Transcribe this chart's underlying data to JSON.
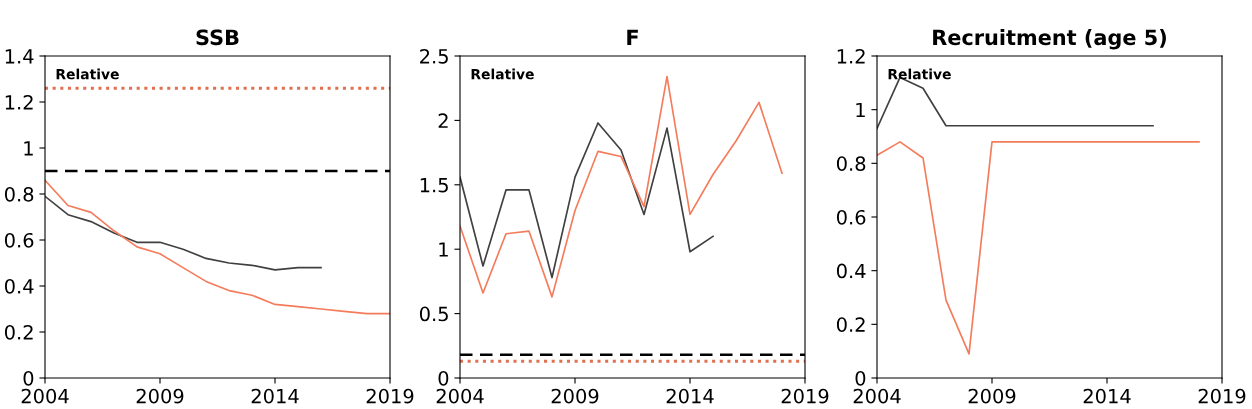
{
  "chart_data": [
    {
      "type": "line",
      "title": "SSB",
      "annotations": [
        "Relative"
      ],
      "xlim": [
        2004,
        2019
      ],
      "xticks": [
        2004,
        2009,
        2014,
        2019
      ],
      "ylim": [
        0,
        1.4
      ],
      "yticks": [
        0,
        0.2,
        0.4,
        0.6,
        0.8,
        1,
        1.2,
        1.4
      ],
      "grid": false,
      "legend": false,
      "series": [
        {
          "color": "#404040",
          "x": [
            2004,
            2005,
            2006,
            2007,
            2008,
            2009,
            2010,
            2011,
            2012,
            2013,
            2014,
            2015,
            2016
          ],
          "values": [
            0.79,
            0.71,
            0.68,
            0.63,
            0.59,
            0.59,
            0.56,
            0.52,
            0.5,
            0.49,
            0.47,
            0.48,
            0.48
          ]
        },
        {
          "color": "#f47c5c",
          "x": [
            2004,
            2005,
            2006,
            2007,
            2008,
            2009,
            2010,
            2011,
            2012,
            2013,
            2014,
            2015,
            2016,
            2017,
            2018,
            2019
          ],
          "values": [
            0.86,
            0.75,
            0.72,
            0.64,
            0.57,
            0.54,
            0.48,
            0.42,
            0.38,
            0.36,
            0.32,
            0.31,
            0.3,
            0.29,
            0.28,
            0.28
          ]
        }
      ],
      "ref_lines": [
        {
          "axis": "y",
          "value": 0.9,
          "color": "#000000",
          "line_style": "dashed"
        },
        {
          "axis": "y",
          "value": 1.26,
          "color": "#e07050",
          "line_style": "dotted"
        }
      ]
    },
    {
      "type": "line",
      "title": "F",
      "annotations": [
        "Relative"
      ],
      "xlim": [
        2004,
        2019
      ],
      "xticks": [
        2004,
        2009,
        2014,
        2019
      ],
      "ylim": [
        0,
        2.5
      ],
      "yticks": [
        0,
        0.5,
        1,
        1.5,
        2,
        2.5
      ],
      "grid": false,
      "legend": false,
      "series": [
        {
          "color": "#404040",
          "x": [
            2004,
            2005,
            2006,
            2007,
            2008,
            2009,
            2010,
            2011,
            2012,
            2013,
            2014,
            2015
          ],
          "values": [
            1.56,
            0.87,
            1.46,
            1.46,
            0.78,
            1.56,
            1.98,
            1.77,
            1.27,
            1.94,
            0.98,
            1.1
          ]
        },
        {
          "color": "#f47c5c",
          "x": [
            2004,
            2005,
            2006,
            2007,
            2008,
            2009,
            2010,
            2011,
            2012,
            2013,
            2014,
            2015,
            2016,
            2017,
            2018
          ],
          "values": [
            1.18,
            0.66,
            1.12,
            1.14,
            0.63,
            1.3,
            1.76,
            1.72,
            1.33,
            2.34,
            1.27,
            1.58,
            1.84,
            2.14,
            1.59
          ]
        }
      ],
      "ref_lines": [
        {
          "axis": "y",
          "value": 0.18,
          "color": "#000000",
          "line_style": "dashed"
        },
        {
          "axis": "y",
          "value": 0.13,
          "color": "#e07050",
          "line_style": "dotted"
        }
      ]
    },
    {
      "type": "line",
      "title": "Recruitment (age 5)",
      "annotations": [
        "Relative"
      ],
      "xlim": [
        2004,
        2019
      ],
      "xticks": [
        2004,
        2009,
        2014,
        2019
      ],
      "ylim": [
        0,
        1.2
      ],
      "yticks": [
        0,
        0.2,
        0.4,
        0.6,
        0.8,
        1,
        1.2
      ],
      "grid": false,
      "legend": false,
      "series": [
        {
          "color": "#404040",
          "x": [
            2004,
            2005,
            2006,
            2007,
            2008,
            2009,
            2010,
            2011,
            2012,
            2013,
            2014,
            2015,
            2016
          ],
          "values": [
            0.93,
            1.12,
            1.08,
            0.94,
            0.94,
            0.94,
            0.94,
            0.94,
            0.94,
            0.94,
            0.94,
            0.94,
            0.94
          ]
        },
        {
          "color": "#f47c5c",
          "x": [
            2004,
            2005,
            2006,
            2007,
            2008,
            2009,
            2010,
            2011,
            2012,
            2013,
            2014,
            2015,
            2016,
            2017,
            2018
          ],
          "values": [
            0.83,
            0.88,
            0.82,
            0.29,
            0.09,
            0.88,
            0.88,
            0.88,
            0.88,
            0.88,
            0.88,
            0.88,
            0.88,
            0.88,
            0.88
          ]
        }
      ]
    }
  ]
}
